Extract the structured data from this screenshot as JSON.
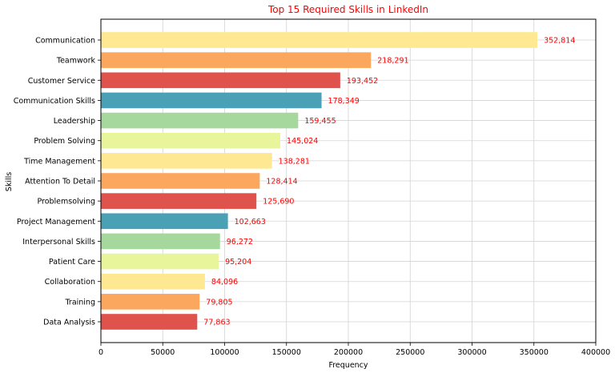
{
  "chart_data": {
    "type": "bar",
    "orientation": "horizontal",
    "title": "Top 15 Required Skills in LinkedIn",
    "xlabel": "Frequency",
    "ylabel": "Skills",
    "xlim": [
      0,
      400000
    ],
    "xticks": [
      "0",
      "50000",
      "100000",
      "150000",
      "200000",
      "250000",
      "300000",
      "350000",
      "400000"
    ],
    "grid": true,
    "categories": [
      "Communication",
      "Teamwork",
      "Customer Service",
      "Communication Skills",
      "Leadership",
      "Problem Solving",
      "Time Management",
      "Attention To Detail",
      "Problemsolving",
      "Project Management",
      "Interpersonal Skills",
      "Patient Care",
      "Collaboration",
      "Training",
      "Data Analysis"
    ],
    "values": [
      352814,
      218291,
      193452,
      178349,
      159455,
      145024,
      138281,
      128414,
      125690,
      102663,
      96272,
      95204,
      84096,
      79805,
      77863
    ],
    "value_labels": [
      "352,814",
      "218,291",
      "193,452",
      "178,349",
      "159,455",
      "145,024",
      "138,281",
      "128,414",
      "125,690",
      "102,663",
      "96,272",
      "95,204",
      "84,096",
      "79,805",
      "77,863"
    ],
    "colors": [
      "#fee891",
      "#fca75e",
      "#e0524c",
      "#4aa0b5",
      "#a6d89e",
      "#e9f59b",
      "#fee891",
      "#fca75e",
      "#e0524c",
      "#4aa0b5",
      "#a6d89e",
      "#e9f59b",
      "#fee891",
      "#fca75e",
      "#e0524c"
    ],
    "title_color": "#ff0000",
    "value_label_color": "#ff0000"
  }
}
